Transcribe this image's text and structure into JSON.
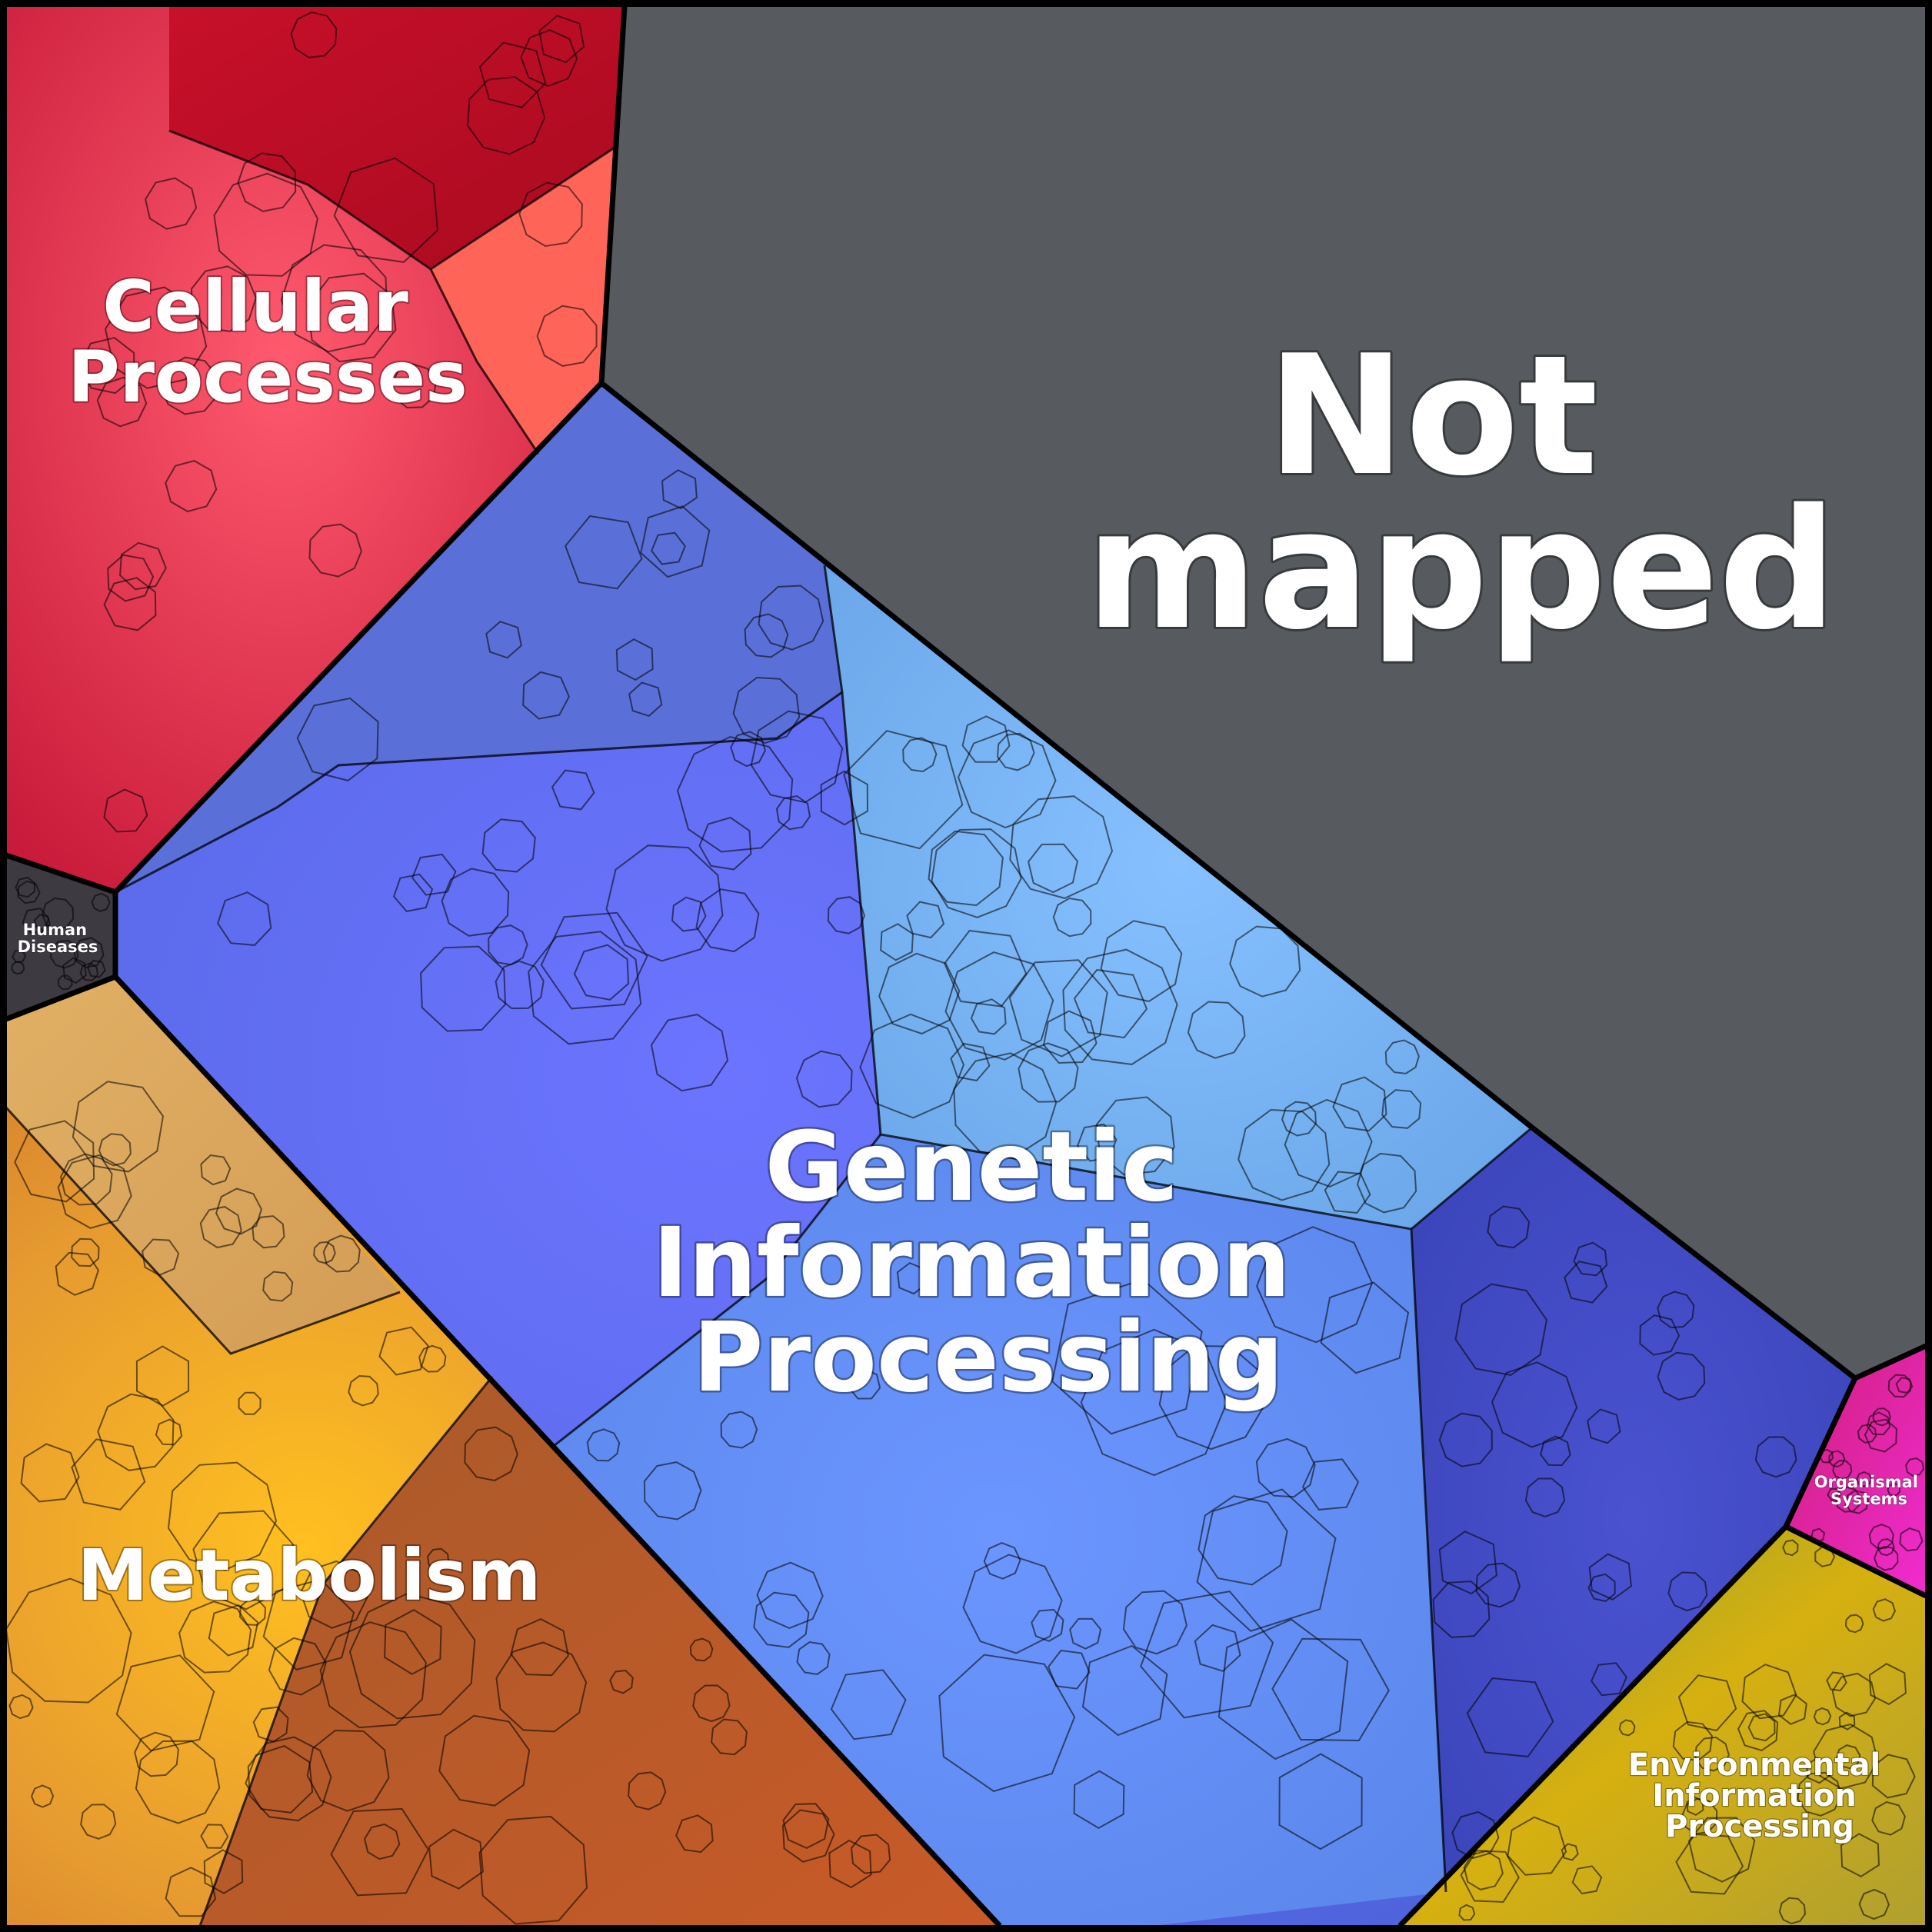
{
  "regions": [
    {
      "id": "not-mapped",
      "label": [
        "Not",
        "mapped"
      ],
      "color": "#575b5f"
    },
    {
      "id": "cellular-processes",
      "label": [
        "Cellular",
        "Processes"
      ],
      "color": "#e0284a"
    },
    {
      "id": "genetic-information-processing",
      "label": [
        "Genetic",
        "Information",
        "Processing"
      ],
      "color": "#5b7cf0"
    },
    {
      "id": "metabolism",
      "label": [
        "Metabolism"
      ],
      "color": "#e2922e"
    },
    {
      "id": "human-diseases",
      "label": [
        "Human",
        "Diseases"
      ],
      "color": "#3d3a42"
    },
    {
      "id": "organismal-systems",
      "label": [
        "Organismal",
        "Systems"
      ],
      "color": "#e4289c"
    },
    {
      "id": "environmental-information-processing",
      "label": [
        "Environmental",
        "Information",
        "Processing"
      ],
      "color": "#c6aa1a"
    }
  ]
}
